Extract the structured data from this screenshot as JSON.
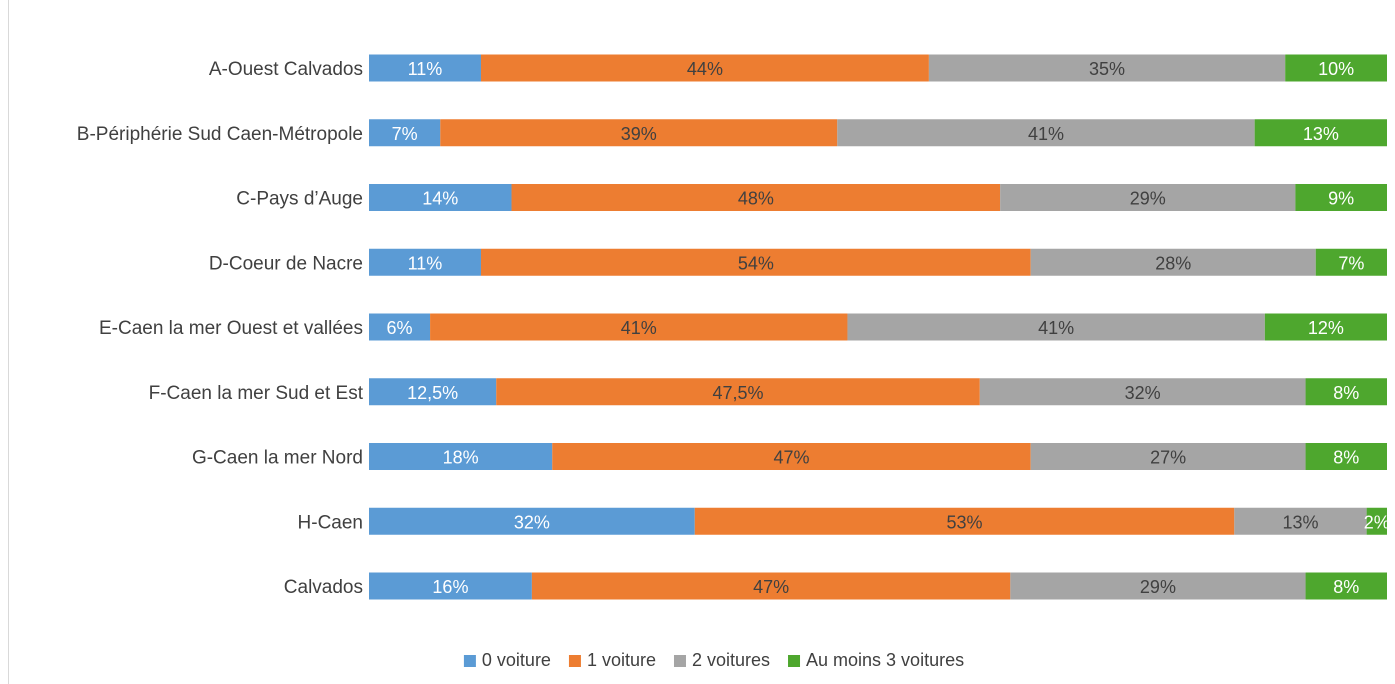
{
  "chart_data": {
    "type": "bar",
    "orientation": "horizontal",
    "stacked": "100%",
    "title": "",
    "categories": [
      "A-Ouest Calvados",
      "B-Périphérie Sud Caen-Métropole",
      "C-Pays d’Auge",
      "D-Coeur de Nacre",
      "E-Caen la mer Ouest et vallées",
      "F-Caen la mer Sud et Est",
      "G-Caen la mer Nord",
      "H-Caen",
      "Calvados"
    ],
    "series": [
      {
        "name": "0 voiture",
        "color": "#5b9bd5",
        "values": [
          11,
          7,
          14,
          11,
          6,
          12.5,
          18,
          32,
          16
        ],
        "labels": [
          "11%",
          "7%",
          "14%",
          "11%",
          "6%",
          "12,5%",
          "18%",
          "32%",
          "16%"
        ]
      },
      {
        "name": "1 voiture",
        "color": "#ed7d31",
        "values": [
          44,
          39,
          48,
          54,
          41,
          47.5,
          47,
          53,
          47
        ],
        "labels": [
          "44%",
          "39%",
          "48%",
          "54%",
          "41%",
          "47,5%",
          "47%",
          "53%",
          "47%"
        ]
      },
      {
        "name": "2 voitures",
        "color": "#a5a5a5",
        "values": [
          35,
          41,
          29,
          28,
          41,
          32,
          27,
          13,
          29
        ],
        "labels": [
          "35%",
          "41%",
          "29%",
          "28%",
          "41%",
          "32%",
          "27%",
          "13%",
          "29%"
        ]
      },
      {
        "name": "Au moins 3 voitures",
        "color": "#4ea72e",
        "values": [
          10,
          13,
          9,
          7,
          12,
          8,
          8,
          2,
          8
        ],
        "labels": [
          "10%",
          "13%",
          "9%",
          "7%",
          "12%",
          "8%",
          "8%",
          "2%",
          "8%"
        ]
      }
    ],
    "xlim": [
      0,
      100
    ],
    "legend_position": "bottom",
    "grid": false
  }
}
